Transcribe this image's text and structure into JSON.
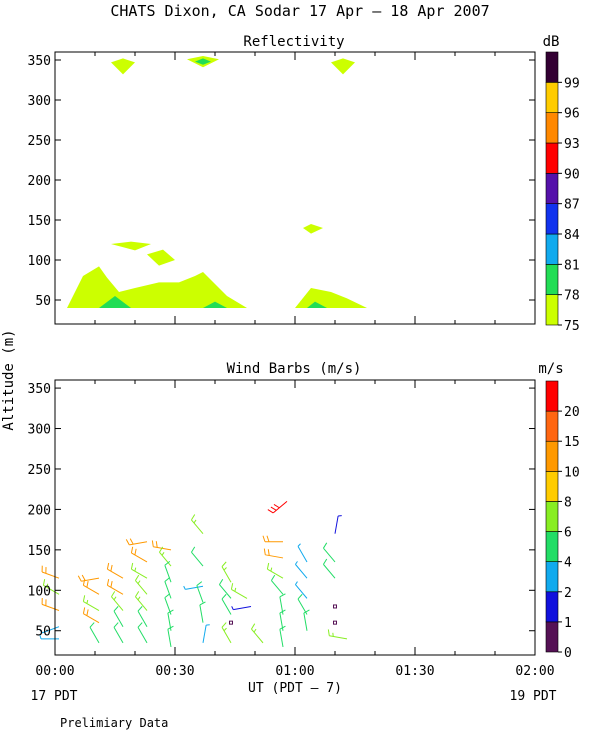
{
  "title": "CHATS Dixon, CA  Sodar  17 Apr – 18 Apr 2007",
  "footnote": "Prelimiary Data",
  "chart_data": [
    {
      "type": "heatmap",
      "title": "Reflectivity",
      "colorbar_unit": "dB",
      "colorbar_ticks": [
        "75",
        "78",
        "81",
        "84",
        "87",
        "90",
        "93",
        "96",
        "99"
      ],
      "colorbar_colors": [
        "#ccff00",
        "#22dd55",
        "#11aaee",
        "#1133ee",
        "#5511aa",
        "#ff0000",
        "#ff8800",
        "#ffcc00",
        "#330033"
      ],
      "ylim": [
        20,
        360
      ],
      "y_ticks": [
        50,
        100,
        150,
        200,
        250,
        300,
        350
      ],
      "xlim": [
        0,
        120
      ],
      "region_colors": {
        "75": "#ccff00",
        "78": "#22dd55"
      },
      "regions": [
        {
          "level": "75",
          "points": [
            [
              3,
              40
            ],
            [
              7,
              80
            ],
            [
              11,
              92
            ],
            [
              13,
              78
            ],
            [
              16,
              60
            ],
            [
              20,
              65
            ],
            [
              26,
              72
            ],
            [
              31,
              72
            ],
            [
              35,
              80
            ],
            [
              37,
              85
            ],
            [
              39,
              75
            ],
            [
              43,
              55
            ],
            [
              48,
              40
            ],
            [
              3,
              40
            ]
          ]
        },
        {
          "level": "78",
          "points": [
            [
              11,
              40
            ],
            [
              15,
              55
            ],
            [
              19,
              40
            ],
            [
              11,
              40
            ]
          ]
        },
        {
          "level": "78",
          "points": [
            [
              37,
              40
            ],
            [
              40,
              48
            ],
            [
              43,
              40
            ],
            [
              37,
              40
            ]
          ]
        },
        {
          "level": "75",
          "points": [
            [
              14,
              120
            ],
            [
              19,
              123
            ],
            [
              24,
              120
            ],
            [
              20,
              112
            ],
            [
              14,
              120
            ]
          ]
        },
        {
          "level": "75",
          "points": [
            [
              23,
              107
            ],
            [
              27,
              113
            ],
            [
              30,
              100
            ],
            [
              26,
              93
            ],
            [
              23,
              107
            ]
          ]
        },
        {
          "level": "75",
          "points": [
            [
              60,
              40
            ],
            [
              64,
              65
            ],
            [
              69,
              60
            ],
            [
              73,
              52
            ],
            [
              78,
              40
            ],
            [
              60,
              40
            ]
          ]
        },
        {
          "level": "78",
          "points": [
            [
              63,
              40
            ],
            [
              65,
              48
            ],
            [
              68,
              40
            ],
            [
              63,
              40
            ]
          ]
        },
        {
          "level": "75",
          "points": [
            [
              62,
              140
            ],
            [
              64,
              145
            ],
            [
              67,
              140
            ],
            [
              64,
              133
            ],
            [
              62,
              140
            ]
          ]
        },
        {
          "level": "75",
          "points": [
            [
              14,
              347
            ],
            [
              17,
              352
            ],
            [
              20,
              347
            ],
            [
              17,
              332
            ],
            [
              14,
              347
            ]
          ]
        },
        {
          "level": "75",
          "points": [
            [
              33,
              351
            ],
            [
              37,
              355
            ],
            [
              41,
              351
            ],
            [
              37,
              341
            ],
            [
              33,
              351
            ]
          ]
        },
        {
          "level": "78",
          "points": [
            [
              35,
              348
            ],
            [
              37,
              352
            ],
            [
              39,
              348
            ],
            [
              37,
              344
            ],
            [
              35,
              348
            ]
          ]
        },
        {
          "level": "75",
          "points": [
            [
              69,
              347
            ],
            [
              72,
              352
            ],
            [
              75,
              347
            ],
            [
              72,
              332
            ],
            [
              69,
              347
            ]
          ]
        }
      ]
    },
    {
      "type": "scatter",
      "title": "Wind Barbs (m/s)",
      "ylabel": "Altitude (m)",
      "xlabel": "UT  (PDT – 7)",
      "x_tick_labels": [
        "00:00",
        "00:30",
        "01:00",
        "01:30",
        "02:00"
      ],
      "x_ticks": [
        0,
        30,
        60,
        90,
        120
      ],
      "xlim": [
        0,
        120
      ],
      "ylim": [
        20,
        360
      ],
      "y_ticks": [
        50,
        100,
        150,
        200,
        250,
        300,
        350
      ],
      "date_left": "17 PDT",
      "date_right": "19 PDT",
      "colorbar_unit": "m/s",
      "colorbar_ticks": [
        "0",
        "1",
        "2",
        "4",
        "6",
        "8",
        "10",
        "15",
        "20"
      ],
      "colorbar_colors": [
        "#551155",
        "#1111dd",
        "#11aaee",
        "#22dd66",
        "#88ee22",
        "#ffcc00",
        "#ff9900",
        "#ff6611",
        "#ff0000"
      ],
      "barbs": [
        {
          "t": 1,
          "z": 115,
          "dir": 290,
          "spd": 8,
          "color": "#ff9900"
        },
        {
          "t": 1,
          "z": 95,
          "dir": 300,
          "spd": 6,
          "color": "#88ee22"
        },
        {
          "t": 1,
          "z": 75,
          "dir": 290,
          "spd": 8,
          "color": "#ff9900"
        },
        {
          "t": 1,
          "z": 55,
          "dir": 250,
          "spd": 2,
          "color": "#11aaee"
        },
        {
          "t": 1,
          "z": 40,
          "dir": 270,
          "spd": 2,
          "color": "#11aaee"
        },
        {
          "t": 11,
          "z": 115,
          "dir": 260,
          "spd": 8,
          "color": "#ff9900"
        },
        {
          "t": 11,
          "z": 95,
          "dir": 300,
          "spd": 8,
          "color": "#ff9900"
        },
        {
          "t": 11,
          "z": 75,
          "dir": 300,
          "spd": 6,
          "color": "#88ee22"
        },
        {
          "t": 11,
          "z": 60,
          "dir": 300,
          "spd": 8,
          "color": "#ff9900"
        },
        {
          "t": 11,
          "z": 35,
          "dir": 330,
          "spd": 4,
          "color": "#22dd66"
        },
        {
          "t": 17,
          "z": 115,
          "dir": 300,
          "spd": 8,
          "color": "#ff9900"
        },
        {
          "t": 17,
          "z": 95,
          "dir": 300,
          "spd": 8,
          "color": "#ff9900"
        },
        {
          "t": 17,
          "z": 75,
          "dir": 320,
          "spd": 6,
          "color": "#88ee22"
        },
        {
          "t": 17,
          "z": 55,
          "dir": 330,
          "spd": 4,
          "color": "#22dd66"
        },
        {
          "t": 17,
          "z": 35,
          "dir": 330,
          "spd": 4,
          "color": "#22dd66"
        },
        {
          "t": 23,
          "z": 160,
          "dir": 260,
          "spd": 8,
          "color": "#ff9900"
        },
        {
          "t": 23,
          "z": 135,
          "dir": 300,
          "spd": 8,
          "color": "#ff9900"
        },
        {
          "t": 23,
          "z": 115,
          "dir": 300,
          "spd": 6,
          "color": "#88ee22"
        },
        {
          "t": 23,
          "z": 95,
          "dir": 320,
          "spd": 6,
          "color": "#88ee22"
        },
        {
          "t": 23,
          "z": 75,
          "dir": 320,
          "spd": 6,
          "color": "#88ee22"
        },
        {
          "t": 23,
          "z": 55,
          "dir": 330,
          "spd": 4,
          "color": "#22dd66"
        },
        {
          "t": 23,
          "z": 35,
          "dir": 330,
          "spd": 4,
          "color": "#22dd66"
        },
        {
          "t": 29,
          "z": 150,
          "dir": 280,
          "spd": 8,
          "color": "#ff9900"
        },
        {
          "t": 29,
          "z": 130,
          "dir": 320,
          "spd": 6,
          "color": "#88ee22"
        },
        {
          "t": 29,
          "z": 110,
          "dir": 340,
          "spd": 4,
          "color": "#22dd66"
        },
        {
          "t": 29,
          "z": 90,
          "dir": 340,
          "spd": 4,
          "color": "#22dd66"
        },
        {
          "t": 29,
          "z": 70,
          "dir": 340,
          "spd": 4,
          "color": "#22dd66"
        },
        {
          "t": 29,
          "z": 50,
          "dir": 350,
          "spd": 4,
          "color": "#22dd66"
        },
        {
          "t": 29,
          "z": 30,
          "dir": 350,
          "spd": 4,
          "color": "#22dd66"
        },
        {
          "t": 37,
          "z": 170,
          "dir": 320,
          "spd": 6,
          "color": "#88ee22"
        },
        {
          "t": 37,
          "z": 130,
          "dir": 320,
          "spd": 4,
          "color": "#22dd66"
        },
        {
          "t": 37,
          "z": 105,
          "dir": 260,
          "spd": 2,
          "color": "#11aaee"
        },
        {
          "t": 37,
          "z": 85,
          "dir": 340,
          "spd": 4,
          "color": "#22dd66"
        },
        {
          "t": 37,
          "z": 60,
          "dir": 350,
          "spd": 4,
          "color": "#22dd66"
        },
        {
          "t": 37,
          "z": 35,
          "dir": 10,
          "spd": 2,
          "color": "#11aaee"
        },
        {
          "t": 44,
          "z": 110,
          "dir": 330,
          "spd": 6,
          "color": "#88ee22"
        },
        {
          "t": 44,
          "z": 90,
          "dir": 320,
          "spd": 4,
          "color": "#22dd66"
        },
        {
          "t": 44,
          "z": 70,
          "dir": 330,
          "spd": 4,
          "color": "#22dd66"
        },
        {
          "t": 44,
          "z": 60,
          "dir": 0,
          "spd": 0,
          "color": "#551155"
        },
        {
          "t": 44,
          "z": 35,
          "dir": 330,
          "spd": 6,
          "color": "#88ee22"
        },
        {
          "t": 48,
          "z": 90,
          "dir": 300,
          "spd": 6,
          "color": "#88ee22"
        },
        {
          "t": 49,
          "z": 80,
          "dir": 260,
          "spd": 1,
          "color": "#1111dd"
        },
        {
          "t": 52,
          "z": 35,
          "dir": 320,
          "spd": 6,
          "color": "#88ee22"
        },
        {
          "t": 57,
          "z": 160,
          "dir": 270,
          "spd": 8,
          "color": "#ff9900"
        },
        {
          "t": 57,
          "z": 140,
          "dir": 280,
          "spd": 8,
          "color": "#ff9900"
        },
        {
          "t": 58,
          "z": 210,
          "dir": 230,
          "spd": 20,
          "color": "#ff0000"
        },
        {
          "t": 57,
          "z": 115,
          "dir": 300,
          "spd": 6,
          "color": "#88ee22"
        },
        {
          "t": 57,
          "z": 95,
          "dir": 320,
          "spd": 4,
          "color": "#22dd66"
        },
        {
          "t": 57,
          "z": 70,
          "dir": 350,
          "spd": 4,
          "color": "#22dd66"
        },
        {
          "t": 57,
          "z": 50,
          "dir": 350,
          "spd": 4,
          "color": "#22dd66"
        },
        {
          "t": 57,
          "z": 30,
          "dir": 350,
          "spd": 4,
          "color": "#22dd66"
        },
        {
          "t": 63,
          "z": 135,
          "dir": 330,
          "spd": 2,
          "color": "#11aaee"
        },
        {
          "t": 63,
          "z": 115,
          "dir": 320,
          "spd": 2,
          "color": "#11aaee"
        },
        {
          "t": 63,
          "z": 90,
          "dir": 320,
          "spd": 2,
          "color": "#11aaee"
        },
        {
          "t": 63,
          "z": 70,
          "dir": 330,
          "spd": 4,
          "color": "#22dd66"
        },
        {
          "t": 63,
          "z": 50,
          "dir": 350,
          "spd": 4,
          "color": "#22dd66"
        },
        {
          "t": 70,
          "z": 170,
          "dir": 10,
          "spd": 1,
          "color": "#1111dd"
        },
        {
          "t": 70,
          "z": 135,
          "dir": 320,
          "spd": 4,
          "color": "#22dd66"
        },
        {
          "t": 70,
          "z": 115,
          "dir": 320,
          "spd": 4,
          "color": "#22dd66"
        },
        {
          "t": 70,
          "z": 80,
          "dir": 0,
          "spd": 0,
          "color": "#551155"
        },
        {
          "t": 70,
          "z": 60,
          "dir": 0,
          "spd": 0,
          "color": "#551155"
        },
        {
          "t": 73,
          "z": 40,
          "dir": 280,
          "spd": 6,
          "color": "#88ee22"
        }
      ]
    }
  ]
}
